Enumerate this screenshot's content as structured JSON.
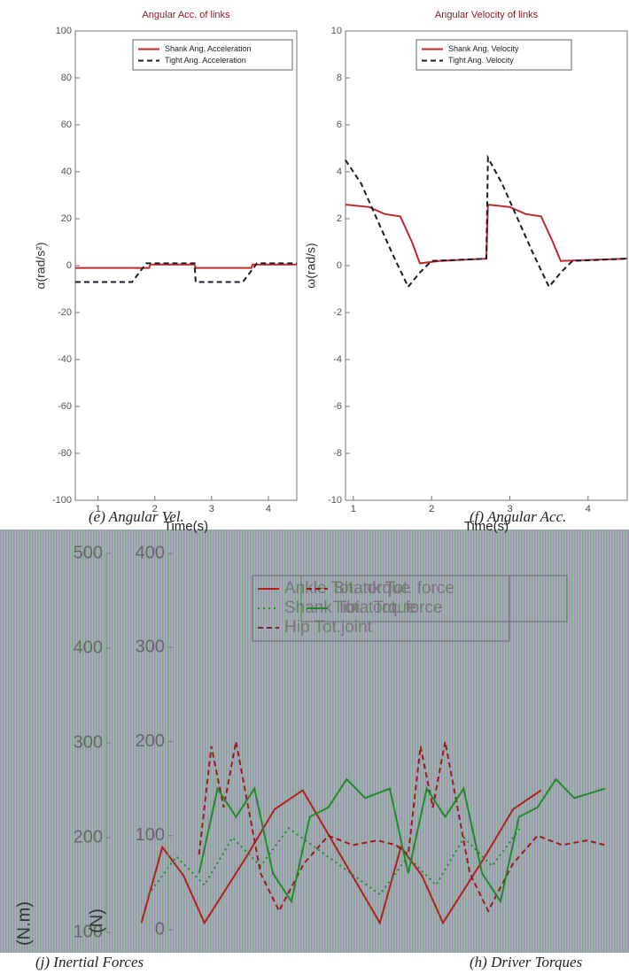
{
  "chart_data": [
    {
      "type": "line",
      "title": "Angular Acc. of links",
      "xlabel": "Time(s)",
      "ylabel": "α(rad/s²)",
      "xlim": [
        0.6,
        4.5
      ],
      "xticks": [
        1,
        2,
        3,
        4
      ],
      "ylim": [
        -100,
        100
      ],
      "yticks": [
        -100,
        -80,
        -60,
        -40,
        -20,
        0,
        20,
        40,
        60,
        80,
        100
      ],
      "series": [
        {
          "name": "Shank Ang. Acceleration",
          "color": "#c0282d",
          "dash": "solid",
          "x": [
            0.6,
            1.9,
            1.92,
            2.7,
            2.72,
            3.7,
            3.72,
            4.5
          ],
          "values": [
            -1,
            -1,
            0.5,
            0.5,
            -1,
            -1,
            0.5,
            0.5
          ]
        },
        {
          "name": "Tight Ang. Acceleration",
          "color": "#1a1a2a",
          "dash": "dashed",
          "x": [
            0.6,
            1.6,
            1.85,
            2.7,
            2.72,
            3.55,
            3.8,
            4.5
          ],
          "values": [
            -7,
            -7,
            1,
            1,
            -7,
            -7,
            1,
            1
          ]
        }
      ]
    },
    {
      "type": "line",
      "title": "Angular Velocity of links",
      "xlabel": "Time(s)",
      "ylabel": "ω(rad/s)",
      "xlim": [
        0.9,
        4.5
      ],
      "xticks": [
        1,
        2,
        3,
        4
      ],
      "ylim": [
        -10,
        10
      ],
      "yticks": [
        -10,
        -8,
        -6,
        -4,
        -2,
        0,
        2,
        4,
        6,
        8,
        10
      ],
      "series": [
        {
          "name": "Shank Ang. Velocity",
          "color": "#c0282d",
          "dash": "solid",
          "x": [
            0.9,
            1.2,
            1.4,
            1.6,
            1.75,
            1.85,
            2.1,
            2.7,
            2.72,
            3.0,
            3.2,
            3.4,
            3.55,
            3.65,
            4.5
          ],
          "values": [
            2.6,
            2.5,
            2.2,
            2.1,
            1.0,
            0.1,
            0.2,
            0.3,
            2.6,
            2.5,
            2.2,
            2.1,
            1.0,
            0.2,
            0.3
          ]
        },
        {
          "name": "Tight Ang. Velocity",
          "color": "#1a1a2a",
          "dash": "dashed",
          "x": [
            0.9,
            1.1,
            1.3,
            1.5,
            1.7,
            1.85,
            2.0,
            2.7,
            2.72,
            2.9,
            3.1,
            3.3,
            3.5,
            3.65,
            3.8,
            4.5
          ],
          "values": [
            4.5,
            3.5,
            2.0,
            0.5,
            -0.9,
            -0.3,
            0.2,
            0.3,
            4.6,
            3.5,
            2.0,
            0.5,
            -0.9,
            -0.3,
            0.2,
            0.3
          ]
        }
      ]
    },
    {
      "type": "line",
      "ylabel": "(N.m)",
      "xlim": [
        0.9,
        4.5
      ],
      "ylim": [
        100,
        500
      ],
      "yticks": [
        100,
        200,
        300,
        400,
        500
      ],
      "series": [
        {
          "name": "Ankle Tot. torque",
          "color": "#b0201a",
          "dash": "solid",
          "x": [
            1.15,
            1.3,
            1.45,
            1.6,
            1.9,
            2.1,
            2.3,
            2.85,
            3.0,
            3.15,
            3.3,
            3.6,
            3.8,
            4.0
          ],
          "values": [
            110,
            190,
            160,
            110,
            180,
            230,
            250,
            110,
            190,
            160,
            110,
            180,
            230,
            250
          ]
        },
        {
          "name": "Shank Tot. torque",
          "color": "#1f8a2a",
          "dash": "dotted",
          "x": [
            1.2,
            1.4,
            1.6,
            1.8,
            2.0,
            2.2,
            2.85,
            3.05,
            3.25,
            3.45,
            3.65,
            3.85
          ],
          "values": [
            140,
            180,
            150,
            200,
            170,
            210,
            140,
            180,
            150,
            200,
            170,
            210
          ]
        },
        {
          "name": "Hip Tot.joint",
          "color": "#7a2030",
          "dash": "dashed",
          "x": [],
          "values": []
        }
      ]
    },
    {
      "type": "line",
      "ylabel": "(N)",
      "xlim": [
        0.9,
        4.5
      ],
      "ylim": [
        0,
        400
      ],
      "yticks": [
        0,
        100,
        200,
        300,
        400
      ],
      "series": [
        {
          "name": "Shank Tot. force",
          "color": "#9a1818",
          "dash": "dashed",
          "x": [
            1.15,
            1.25,
            1.35,
            1.45,
            1.55,
            1.65,
            1.8,
            2.0,
            2.2,
            2.4,
            2.6,
            2.75,
            2.85,
            2.95,
            3.05,
            3.15,
            3.25,
            3.35,
            3.5,
            3.7,
            3.9,
            4.1,
            4.3,
            4.45
          ],
          "values": [
            80,
            195,
            130,
            200,
            130,
            60,
            20,
            70,
            100,
            90,
            95,
            90,
            80,
            195,
            130,
            200,
            130,
            60,
            20,
            70,
            100,
            90,
            95,
            90
          ]
        },
        {
          "name": "Tibia Tot. force",
          "color": "#1f8a2a",
          "dash": "solid",
          "x": [
            1.15,
            1.3,
            1.45,
            1.6,
            1.75,
            1.9,
            2.05,
            2.2,
            2.35,
            2.5,
            2.7,
            2.85,
            3.0,
            3.15,
            3.3,
            3.45,
            3.6,
            3.75,
            3.9,
            4.05,
            4.2,
            4.45
          ],
          "values": [
            60,
            150,
            120,
            150,
            60,
            30,
            120,
            130,
            160,
            140,
            150,
            60,
            150,
            120,
            150,
            60,
            30,
            120,
            130,
            160,
            140,
            150
          ]
        }
      ]
    }
  ],
  "captions": [
    "(e) Angular Vel.",
    "(f) Angular Acc.",
    "(j) Inertial Forces",
    "(h) Driver Torques"
  ]
}
